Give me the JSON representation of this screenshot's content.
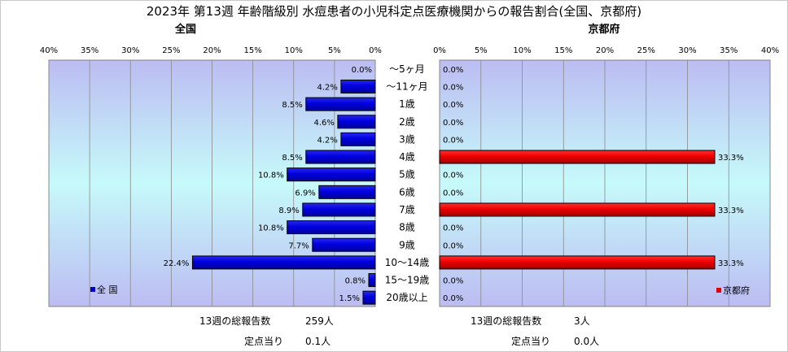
{
  "chart_data": {
    "type": "bar",
    "title": "2023年 第13週 年齢階級別 水痘患者の小児科定点医療機関からの報告割合(全国、京都府)",
    "categories": [
      "～5ヶ月",
      "～11ヶ月",
      "1歳",
      "2歳",
      "3歳",
      "4歳",
      "5歳",
      "6歳",
      "7歳",
      "8歳",
      "9歳",
      "10～14歳",
      "15～19歳",
      "20歳以上"
    ],
    "left": {
      "panel_title": "全国",
      "legend": "全 国",
      "color": "#0000cc",
      "xlim": [
        0,
        40
      ],
      "ticks": [
        "40%",
        "35%",
        "30%",
        "25%",
        "20%",
        "15%",
        "10%",
        "5%",
        "0%"
      ],
      "tick_values": [
        40,
        35,
        30,
        25,
        20,
        15,
        10,
        5,
        0
      ],
      "values": [
        0.0,
        4.2,
        8.5,
        4.6,
        4.2,
        8.5,
        10.8,
        6.9,
        8.9,
        10.8,
        7.7,
        22.4,
        0.8,
        1.5
      ],
      "value_labels": [
        "0.0%",
        "4.2%",
        "8.5%",
        "4.6%",
        "4.2%",
        "8.5%",
        "10.8%",
        "6.9%",
        "8.9%",
        "10.8%",
        "7.7%",
        "22.4%",
        "0.8%",
        "1.5%"
      ]
    },
    "right": {
      "panel_title": "京都府",
      "legend": "京都府",
      "color": "#e00000",
      "xlim": [
        0,
        40
      ],
      "ticks": [
        "0%",
        "5%",
        "10%",
        "15%",
        "20%",
        "25%",
        "30%",
        "35%",
        "40%"
      ],
      "tick_values": [
        0,
        5,
        10,
        15,
        20,
        25,
        30,
        35,
        40
      ],
      "values": [
        0.0,
        0.0,
        0.0,
        0.0,
        0.0,
        33.3,
        0.0,
        0.0,
        33.3,
        0.0,
        0.0,
        33.3,
        0.0,
        0.0
      ],
      "value_labels": [
        "0.0%",
        "0.0%",
        "0.0%",
        "0.0%",
        "0.0%",
        "33.3%",
        "0.0%",
        "0.0%",
        "33.3%",
        "0.0%",
        "0.0%",
        "33.3%",
        "0.0%",
        "0.0%"
      ]
    }
  },
  "stats": {
    "left": {
      "total_label": "13週の総報告数",
      "total_value": "259人",
      "per_label": "定点当り",
      "per_value": "0.1人"
    },
    "right": {
      "total_label": "13週の総報告数",
      "total_value": "3人",
      "per_label": "定点当り",
      "per_value": "0.0人"
    }
  }
}
